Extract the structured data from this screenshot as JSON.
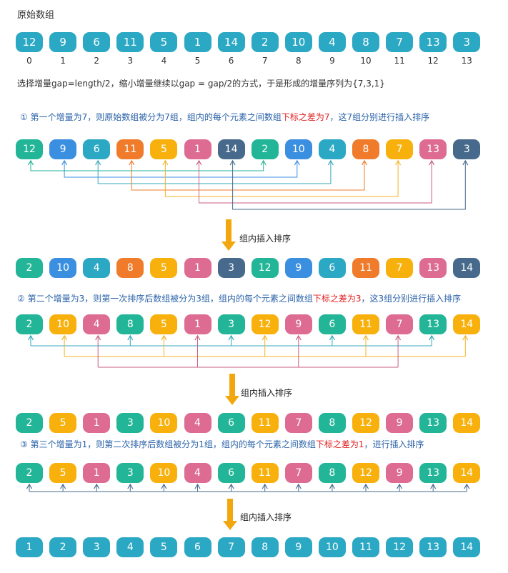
{
  "colors": {
    "teal": "#2ba8c3",
    "green": "#22b597",
    "blue": "#3b8fe0",
    "orange": "#ef7b2b",
    "yellow": "#f8b10c",
    "pink": "#dd6b92",
    "navy": "#476a8c",
    "arrow": "#f3a70f",
    "tealLine": "#33a7b8",
    "blueLine": "#3b8fe0",
    "greenLine": "#22b597",
    "orangeLine": "#ef7b2b",
    "yellowLine": "#f4b326",
    "pinkLine": "#c95e86",
    "navyLine": "#476a8c"
  },
  "header": {
    "title": "原始数组"
  },
  "original": {
    "values": [
      "12",
      "9",
      "6",
      "11",
      "5",
      "1",
      "14",
      "2",
      "10",
      "4",
      "8",
      "7",
      "13",
      "3"
    ],
    "indices": [
      "0",
      "1",
      "2",
      "3",
      "4",
      "5",
      "6",
      "7",
      "8",
      "9",
      "10",
      "11",
      "12",
      "13"
    ]
  },
  "desc": {
    "text": "选择增量gap=length/2，缩小增量继续以gap = gap/2的方式，于是形成的增量序列为{7,3,1}"
  },
  "step1": {
    "prefix": "① 第一个增量为7，则原始数组被分为7组，组内的每个元素之间数组",
    "red": "下标之差为7",
    "suffix": "，这7组分别进行插入排序",
    "before": [
      "12",
      "9",
      "6",
      "11",
      "5",
      "1",
      "14",
      "2",
      "10",
      "4",
      "8",
      "7",
      "13",
      "3"
    ],
    "after": [
      "2",
      "10",
      "4",
      "8",
      "5",
      "1",
      "3",
      "12",
      "9",
      "6",
      "11",
      "7",
      "13",
      "14"
    ],
    "arrow_label": "组内插入排序"
  },
  "step2": {
    "prefix": "② 第二个增量为3，则第一次排序后数组被分为3组，组内的每个元素之间数组",
    "red": "下标之差为3",
    "suffix": "，这3组分别进行插入排序",
    "before": [
      "2",
      "10",
      "4",
      "8",
      "5",
      "1",
      "3",
      "12",
      "9",
      "6",
      "11",
      "7",
      "13",
      "14"
    ],
    "after": [
      "2",
      "5",
      "1",
      "3",
      "10",
      "4",
      "6",
      "11",
      "7",
      "8",
      "12",
      "9",
      "13",
      "14"
    ],
    "arrow_label": "组内插入排序"
  },
  "step3": {
    "prefix": "③ 第三个增量为1，则第二次排序后数组被分为1组，组内的每个元素之间数组",
    "red": "下标之差为1",
    "suffix": "，进行插入排序",
    "before": [
      "2",
      "5",
      "1",
      "3",
      "10",
      "4",
      "6",
      "11",
      "7",
      "8",
      "12",
      "9",
      "13",
      "14"
    ],
    "after": [
      "1",
      "2",
      "3",
      "4",
      "5",
      "6",
      "7",
      "8",
      "9",
      "10",
      "11",
      "12",
      "13",
      "14"
    ],
    "arrow_label": "组内插入排序"
  }
}
